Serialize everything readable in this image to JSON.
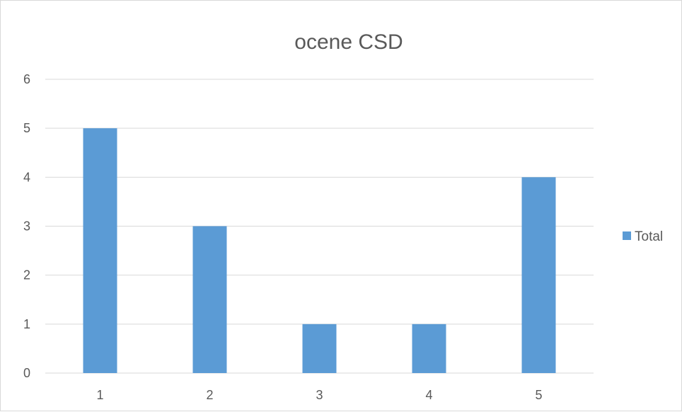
{
  "chart_data": {
    "type": "bar",
    "title": "ocene CSD",
    "xlabel": "",
    "ylabel": "",
    "categories": [
      "1",
      "2",
      "3",
      "4",
      "5"
    ],
    "series": [
      {
        "name": "Total",
        "values": [
          5,
          3,
          1,
          1,
          4
        ],
        "color": "#5b9bd5"
      }
    ],
    "ylim": [
      0,
      6
    ],
    "yticks": [
      0,
      1,
      2,
      3,
      4,
      5,
      6
    ],
    "grid": true,
    "legend": "right"
  }
}
